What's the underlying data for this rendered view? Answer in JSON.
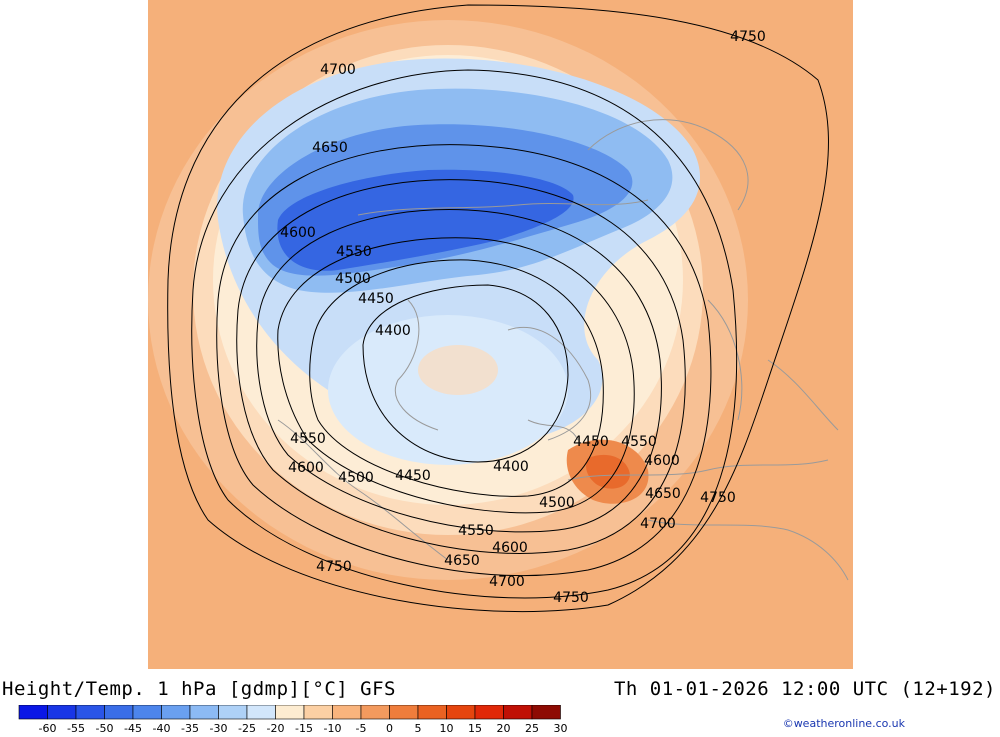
{
  "header": {
    "product": "Height/Temp. 1 hPa [gdmp][°C] GFS",
    "valid_time": "Th 01-01-2026 12:00 UTC (12+192)"
  },
  "credit": "©weatheronline.co.uk",
  "colorbar": {
    "labels": [
      "-60",
      "-55",
      "-50",
      "-45",
      "-40",
      "-35",
      "-30",
      "-25",
      "-20",
      "-15",
      "-10",
      "-5",
      "0",
      "5",
      "10",
      "15",
      "20",
      "25",
      "30"
    ],
    "colors": [
      "#0a17e6",
      "#1936e6",
      "#2a55e8",
      "#3a6ee8",
      "#4d85ec",
      "#6aa0f0",
      "#8cbaf4",
      "#aed1f7",
      "#d2e6fb",
      "#fdecd1",
      "#fcd0a4",
      "#f9b47d",
      "#f39a5e",
      "#ef7d3c",
      "#ea6222",
      "#e5450e",
      "#e02808",
      "#c01005",
      "#8e0b03"
    ]
  },
  "contour_labels": [
    "4750",
    "4700",
    "4650",
    "4600",
    "4550",
    "4500",
    "4450",
    "4400",
    "4550",
    "4600",
    "4500",
    "4450",
    "4400",
    "4450",
    "4550",
    "4600",
    "4650",
    "4750",
    "4500",
    "4700",
    "4550",
    "4600",
    "4650",
    "4700",
    "4750",
    "4750"
  ]
}
